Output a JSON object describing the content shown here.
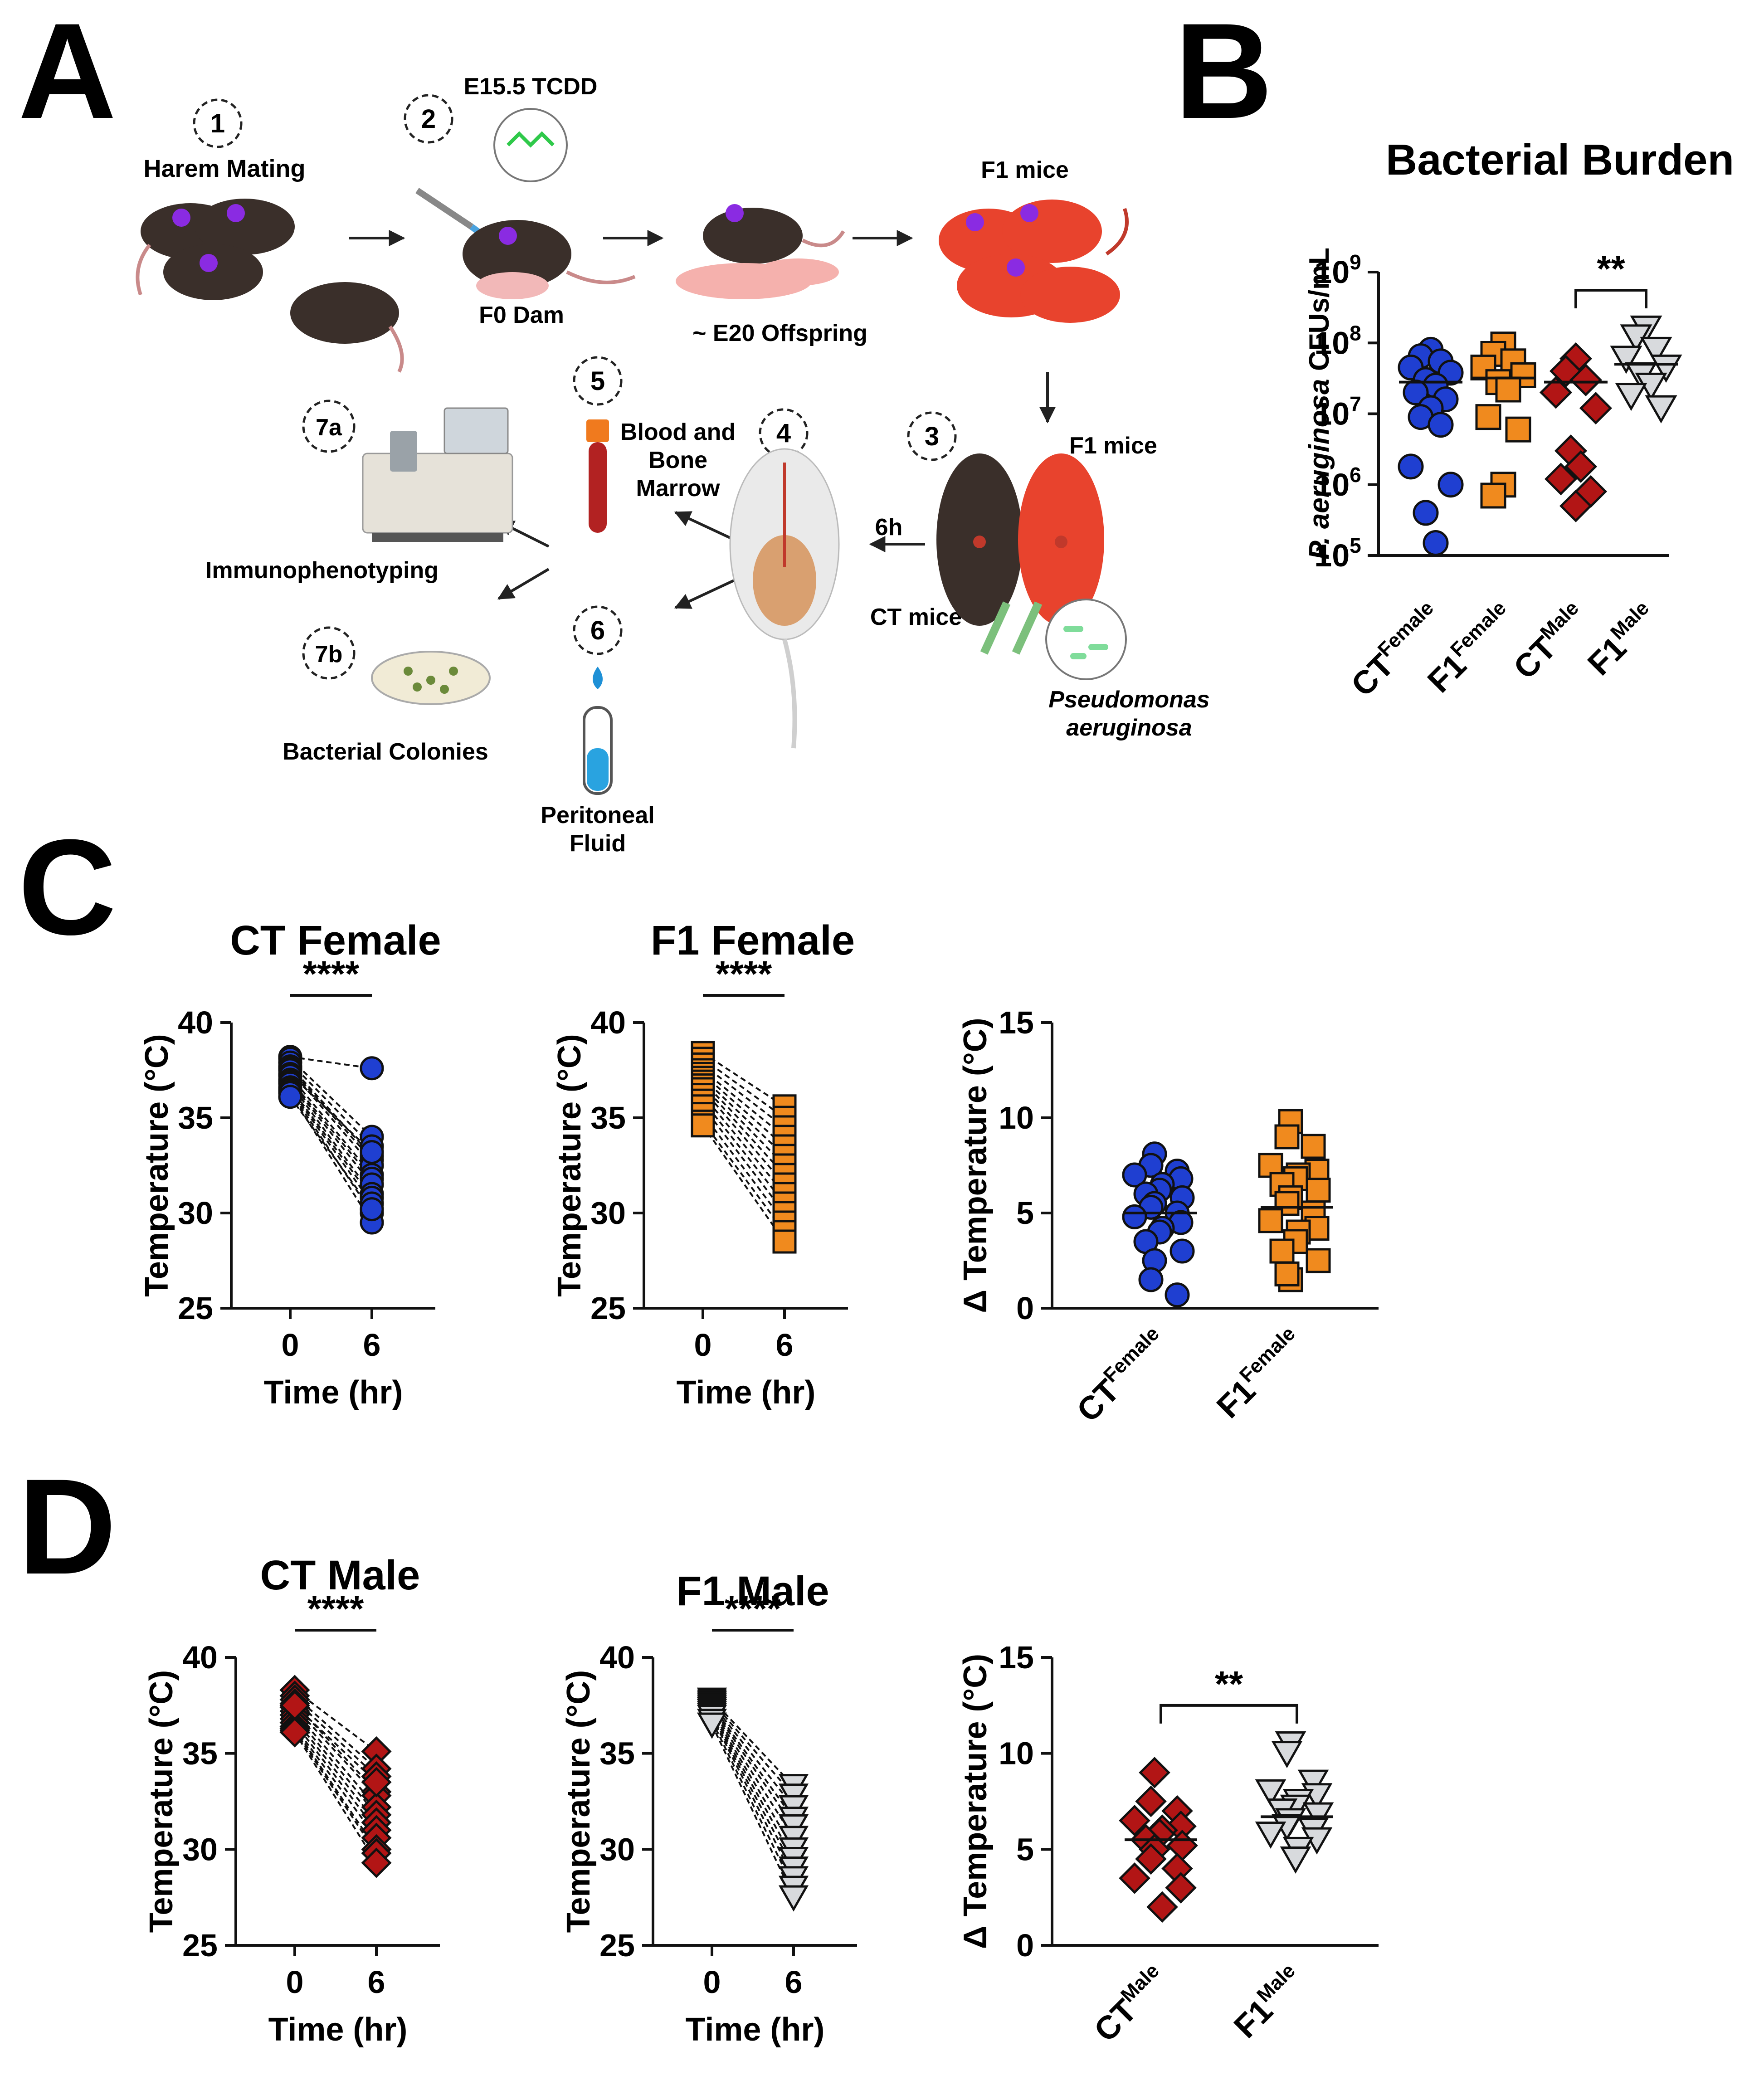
{
  "panel_letters": {
    "a": "A",
    "b": "B",
    "c": "C",
    "d": "D"
  },
  "colors": {
    "ct_female": "#1f3fd1",
    "f1_female": "#f08a1e",
    "ct_male": "#b21515",
    "f1_male": "#d8dadd",
    "black": "#111111"
  },
  "panel_a": {
    "steps": {
      "s1": "1",
      "s2": "2",
      "s3": "3",
      "s4": "4",
      "s5": "5",
      "s6": "6",
      "s7a": "7a",
      "s7b": "7b"
    },
    "labels": {
      "harem": "Harem Mating",
      "tcdd": "E15.5 TCDD",
      "f0dam": "F0 Dam",
      "offspring": "~ E20 Offspring",
      "f1_top": "F1 mice",
      "f1_mid": "F1 mice",
      "ct_mice": "CT mice",
      "six_h": "6h",
      "pseudo1": "Pseudomonas",
      "pseudo2": "aeruginosa",
      "blood1": "Blood and",
      "blood2": "Bone",
      "blood3": "Marrow",
      "immuno": "Immunophenotyping",
      "colonies": "Bacterial Colonies",
      "perit1": "Peritoneal",
      "perit2": "Fluid"
    }
  },
  "chart_data": [
    {
      "id": "B",
      "type": "scatter",
      "title": "Bacterial Burden",
      "ylabel_italic": "P. aeruginosa",
      "ylabel_rest": "CFUs/mL",
      "yscale": "log10",
      "ylim": [
        100000,
        1000000000
      ],
      "yticks": [
        {
          "base": "10",
          "exp": "5"
        },
        {
          "base": "10",
          "exp": "6"
        },
        {
          "base": "10",
          "exp": "7"
        },
        {
          "base": "10",
          "exp": "8"
        },
        {
          "base": "10",
          "exp": "9"
        }
      ],
      "groups": [
        {
          "label": "CT",
          "sup": "Female",
          "marker": "circle",
          "color": "#1f3fd1",
          "mean": 28000000,
          "values": [
            80000000,
            65000000,
            55000000,
            45000000,
            38000000,
            30000000,
            25000000,
            20000000,
            16000000,
            12000000,
            9000000,
            7000000,
            1800000,
            1000000,
            400000,
            150000
          ]
        },
        {
          "label": "F1",
          "sup": "Female",
          "marker": "square",
          "color": "#f08a1e",
          "mean": 32000000,
          "values": [
            95000000,
            70000000,
            55000000,
            45000000,
            35000000,
            28000000,
            22000000,
            9000000,
            6000000,
            1000000,
            700000
          ]
        },
        {
          "label": "CT",
          "sup": "Male",
          "marker": "diamond",
          "color": "#b21515",
          "mean": 28000000,
          "values": [
            60000000,
            40000000,
            30000000,
            20000000,
            12000000,
            3000000,
            1800000,
            1200000,
            800000,
            500000
          ]
        },
        {
          "label": "F1",
          "sup": "Male",
          "marker": "triangle",
          "color": "#d8dadd",
          "mean": 50000000,
          "values": [
            160000000,
            120000000,
            80000000,
            60000000,
            45000000,
            35000000,
            25000000,
            18000000,
            12000000
          ]
        }
      ],
      "significance": [
        {
          "between": [
            2,
            3
          ],
          "label": "**"
        }
      ]
    },
    {
      "id": "C1",
      "type": "line",
      "title": "CT Female",
      "xlabel": "Time (hr)",
      "ylabel": "Temperature (°C)",
      "x": [
        0,
        6
      ],
      "ylim": [
        25,
        40
      ],
      "yticks": [
        25,
        30,
        35,
        40
      ],
      "marker": "circle",
      "color": "#1f3fd1",
      "sig": "****",
      "pairs": [
        [
          38.2,
          37.6
        ],
        [
          38.1,
          34.0
        ],
        [
          37.9,
          33.5
        ],
        [
          37.7,
          33.0
        ],
        [
          37.6,
          32.8
        ],
        [
          37.5,
          32.5
        ],
        [
          37.3,
          33.2
        ],
        [
          37.2,
          32.0
        ],
        [
          37.0,
          31.8
        ],
        [
          36.9,
          31.5
        ],
        [
          36.8,
          31.0
        ],
        [
          36.6,
          30.8
        ],
        [
          36.5,
          30.5
        ],
        [
          36.4,
          30.0
        ],
        [
          36.3,
          29.5
        ],
        [
          36.1,
          30.2
        ]
      ]
    },
    {
      "id": "C2",
      "type": "line",
      "title": "F1 Female",
      "xlabel": "Time (hr)",
      "ylabel": "Temperature (°C)",
      "x": [
        0,
        6
      ],
      "ylim": [
        25,
        40
      ],
      "yticks": [
        25,
        30,
        35,
        40
      ],
      "marker": "square",
      "color": "#f08a1e",
      "sig": "****",
      "pairs": [
        [
          38.4,
          35.6
        ],
        [
          38.1,
          35.0
        ],
        [
          37.8,
          34.5
        ],
        [
          37.5,
          34.0
        ],
        [
          37.3,
          33.5
        ],
        [
          37.1,
          33.0
        ],
        [
          36.9,
          32.5
        ],
        [
          36.7,
          32.0
        ],
        [
          36.5,
          31.5
        ],
        [
          36.2,
          31.0
        ],
        [
          35.9,
          30.5
        ],
        [
          35.6,
          30.0
        ],
        [
          35.2,
          29.5
        ],
        [
          34.8,
          29.0
        ],
        [
          34.6,
          28.5
        ]
      ]
    },
    {
      "id": "C3",
      "type": "scatter",
      "ylabel": "Δ Temperature (°C)",
      "ylim": [
        0,
        15
      ],
      "yticks": [
        0,
        5,
        10,
        15
      ],
      "groups": [
        {
          "label": "CT",
          "sup": "Female",
          "marker": "circle",
          "color": "#1f3fd1",
          "mean": 5.0,
          "values": [
            8.1,
            7.5,
            7.2,
            7.0,
            6.8,
            6.5,
            6.2,
            6.0,
            5.8,
            5.5,
            5.3,
            5.0,
            4.8,
            4.5,
            4.2,
            4.0,
            3.5,
            3.0,
            2.5,
            1.5,
            0.7
          ]
        },
        {
          "label": "F1",
          "sup": "Female",
          "marker": "square",
          "color": "#f08a1e",
          "mean": 5.3,
          "values": [
            9.8,
            9.0,
            8.5,
            7.5,
            7.2,
            7.0,
            6.8,
            6.5,
            6.2,
            5.8,
            5.5,
            5.0,
            4.6,
            4.2,
            4.0,
            3.5,
            3.0,
            2.5,
            1.5,
            1.8
          ]
        }
      ]
    },
    {
      "id": "D1",
      "type": "line",
      "title": "CT Male",
      "xlabel": "Time (hr)",
      "ylabel": "Temperature (°C)",
      "x": [
        0,
        6
      ],
      "ylim": [
        25,
        40
      ],
      "yticks": [
        25,
        30,
        35,
        40
      ],
      "marker": "diamond",
      "color": "#b21515",
      "sig": "****",
      "pairs": [
        [
          38.3,
          35.1
        ],
        [
          38.0,
          34.2
        ],
        [
          37.8,
          33.8
        ],
        [
          37.6,
          33.0
        ],
        [
          37.4,
          32.8
        ],
        [
          37.2,
          32.2
        ],
        [
          37.0,
          31.8
        ],
        [
          36.8,
          31.4
        ],
        [
          36.6,
          31.0
        ],
        [
          36.4,
          30.6
        ],
        [
          36.3,
          30.0
        ],
        [
          36.2,
          29.8
        ],
        [
          36.1,
          29.3
        ],
        [
          37.5,
          33.5
        ]
      ]
    },
    {
      "id": "D2",
      "type": "line",
      "title": "F1 Male",
      "xlabel": "Time (hr)",
      "ylabel": "Temperature (°C)",
      "x": [
        0,
        6
      ],
      "ylim": [
        25,
        40
      ],
      "yticks": [
        25,
        30,
        35,
        40
      ],
      "marker": "triangle",
      "color": "#d8dadd",
      "sig": "****",
      "pairs": [
        [
          37.8,
          33.3
        ],
        [
          37.7,
          32.8
        ],
        [
          37.6,
          32.2
        ],
        [
          37.5,
          31.6
        ],
        [
          37.4,
          31.2
        ],
        [
          37.3,
          30.6
        ],
        [
          37.2,
          30.0
        ],
        [
          37.1,
          29.5
        ],
        [
          37.0,
          29.0
        ],
        [
          36.9,
          28.5
        ],
        [
          36.7,
          28.0
        ],
        [
          36.5,
          27.5
        ]
      ]
    },
    {
      "id": "D3",
      "type": "scatter",
      "ylabel": "Δ Temperature (°C)",
      "ylim": [
        0,
        15
      ],
      "yticks": [
        0,
        5,
        10,
        15
      ],
      "groups": [
        {
          "label": "CT",
          "sup": "Male",
          "marker": "diamond",
          "color": "#b21515",
          "mean": 5.5,
          "values": [
            9.0,
            7.5,
            7.0,
            6.5,
            6.2,
            6.0,
            5.8,
            5.5,
            5.2,
            5.0,
            4.5,
            4.0,
            3.5,
            3.0,
            2.0
          ]
        },
        {
          "label": "F1",
          "sup": "Male",
          "marker": "triangle",
          "color": "#d8dadd",
          "mean": 6.7,
          "values": [
            10.5,
            10.0,
            8.5,
            8.0,
            7.8,
            7.5,
            7.2,
            7.0,
            6.8,
            6.5,
            6.2,
            6.0,
            5.8,
            5.5,
            5.0,
            4.5
          ]
        }
      ],
      "significance": [
        {
          "between": [
            0,
            1
          ],
          "label": "**"
        }
      ]
    }
  ]
}
